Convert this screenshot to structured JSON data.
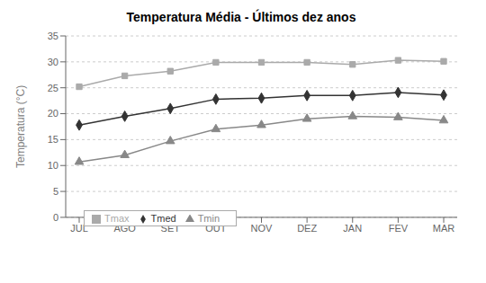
{
  "chart_data": {
    "type": "line",
    "title": "Temperatura Média - Últimos dez anos",
    "ylabel": "Temperatura (°C)",
    "categories": [
      "JUL",
      "AGO",
      "SET",
      "OUT",
      "NOV",
      "DEZ",
      "JAN",
      "FEV",
      "MAR"
    ],
    "series": [
      {
        "name": "Tmed",
        "color": "#333333",
        "marker": "diamond",
        "values": [
          17.8,
          19.5,
          21.0,
          22.8,
          23.0,
          23.5,
          23.5,
          24.1,
          23.6
        ]
      },
      {
        "name": "Tmax",
        "color": "#aaaaaa",
        "marker": "square",
        "values": [
          25.2,
          27.3,
          28.2,
          29.9,
          29.9,
          29.9,
          29.5,
          30.3,
          30.1
        ]
      },
      {
        "name": "Tmin",
        "color": "#888888",
        "marker": "triangle",
        "values": [
          10.7,
          12.0,
          14.7,
          17.0,
          17.8,
          19.0,
          19.5,
          19.3,
          18.7
        ]
      }
    ],
    "ylim": [
      0,
      35
    ],
    "yticks": [
      0,
      5,
      10,
      15,
      20,
      25,
      30,
      35
    ],
    "grid": true,
    "legend": "lower left"
  }
}
